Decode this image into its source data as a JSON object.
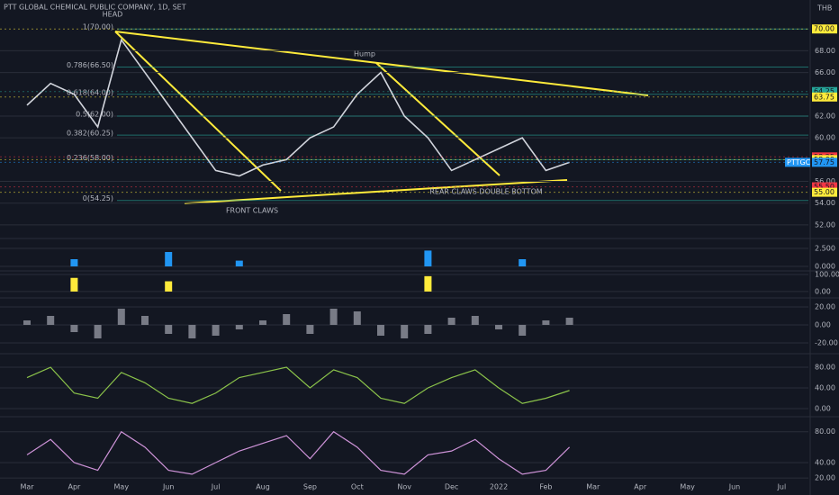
{
  "header": {
    "title": "PTT GLOBAL CHEMICAL PUBLIC COMPANY, 1D, SET",
    "currency": "THB",
    "ticker": "PTTGC"
  },
  "annotations": [
    "HEAD",
    "Hump",
    "FRONT CLAWS",
    "REAR CLAWS DOUBLE BOTTOM"
  ],
  "chart_data": [
    {
      "type": "line",
      "color": "#d1d4dc",
      "categories": [
        "Mar",
        null,
        "Apr",
        null,
        "May",
        null,
        "Jun",
        null,
        "Jul",
        null,
        "Aug",
        null,
        "Sep",
        null,
        "Oct",
        null,
        "Nov",
        null,
        "Dec",
        null,
        "2022",
        null,
        "Feb",
        null,
        "Mar",
        null,
        "Apr",
        null,
        "May",
        null,
        "Jun",
        null,
        "Jul",
        null
      ],
      "values": [
        63,
        65,
        64,
        61,
        69,
        66,
        63,
        60,
        57,
        56.5,
        57.5,
        58,
        60,
        61,
        64,
        66,
        62,
        60,
        57,
        58,
        59,
        60,
        57,
        57.75,
        null,
        null,
        null,
        null,
        null,
        null,
        null,
        null,
        null,
        null
      ],
      "ylim": [
        51,
        72
      ],
      "yticks": [
        {
          "value": 52,
          "label": "52.00"
        },
        {
          "value": 54,
          "label": "54.00"
        },
        {
          "value": 56,
          "label": "56.00"
        },
        {
          "value": 60,
          "label": "60.00"
        },
        {
          "value": 62,
          "label": "62.00"
        },
        {
          "value": 66,
          "label": "66.00"
        },
        {
          "value": 68,
          "label": "68.00"
        }
      ],
      "fib_levels": [
        {
          "value": 70,
          "label": "1(70.00)"
        },
        {
          "value": 66.5,
          "label": "0.786(66.50)"
        },
        {
          "value": 64,
          "label": "0.618(64.00)"
        },
        {
          "value": 62,
          "label": "0.5(62.00)"
        },
        {
          "value": 60.25,
          "label": "0.382(60.25)"
        },
        {
          "value": 58,
          "label": "0.236(58.00)"
        },
        {
          "value": 54.25,
          "label": "0(54.25)"
        }
      ],
      "price_labels": [
        {
          "value": 70,
          "label": "70.00",
          "color": "#ffeb3b"
        },
        {
          "value": 64.25,
          "label": "64.25",
          "color": "#26a69a"
        },
        {
          "value": 63.75,
          "label": "63.75",
          "color": "#ffeb3b"
        },
        {
          "value": 58.25,
          "label": "58.25",
          "color": "#f23645"
        },
        {
          "value": 58,
          "label": "58.00",
          "color": "#ffeb3b"
        },
        {
          "value": 57.75,
          "label": "57.75",
          "color": "#2196f3"
        },
        {
          "value": 55.5,
          "label": "55.50",
          "color": "#f23645"
        },
        {
          "value": 55,
          "label": "55.00",
          "color": "#ffeb3b"
        }
      ]
    },
    {
      "type": "bar",
      "color": "#2196f3",
      "ylim": [
        -0.75,
        3.5
      ],
      "yticks": [
        {
          "value": 2.5,
          "label": "2.500"
        },
        {
          "value": 0,
          "label": "0.000"
        }
      ],
      "values": [
        0,
        0,
        1,
        0,
        0,
        0,
        2,
        0,
        0,
        0.8,
        0,
        0,
        0,
        0,
        0,
        0,
        0,
        2.2,
        0,
        0,
        0,
        1,
        0,
        0,
        null,
        null,
        null,
        null,
        null,
        null,
        null,
        null,
        null,
        null
      ]
    },
    {
      "type": "bar",
      "color": "#ffeb3b",
      "ylim": [
        -32,
        105
      ],
      "yticks": [
        {
          "value": 100,
          "label": "100.00"
        },
        {
          "value": 0,
          "label": "0.00"
        }
      ],
      "values": [
        0,
        0,
        80,
        0,
        0,
        0,
        60,
        0,
        0,
        0,
        0,
        0,
        0,
        0,
        0,
        0,
        0,
        90,
        0,
        0,
        0,
        0,
        0,
        0,
        null,
        null,
        null,
        null,
        null,
        null,
        null,
        null,
        null,
        null
      ]
    },
    {
      "type": "bar",
      "color": "#787b86",
      "ylim": [
        -31,
        27
      ],
      "yticks": [
        {
          "value": 20,
          "label": "20.00"
        },
        {
          "value": 0,
          "label": "0.00"
        },
        {
          "value": -20,
          "label": "-20.00"
        }
      ],
      "values": [
        5,
        10,
        -8,
        -15,
        18,
        10,
        -10,
        -15,
        -12,
        -5,
        5,
        12,
        -10,
        18,
        15,
        -12,
        -15,
        -10,
        8,
        10,
        -5,
        -12,
        5,
        8,
        null,
        null,
        null,
        null,
        null,
        null,
        null,
        null,
        null,
        null
      ]
    },
    {
      "type": "line",
      "color": "#8bc34a",
      "ylim": [
        -14,
        101
      ],
      "yticks": [
        {
          "value": 80,
          "label": "80.00"
        },
        {
          "value": 40,
          "label": "40.00"
        },
        {
          "value": 0,
          "label": "0.00"
        }
      ],
      "values": [
        60,
        80,
        30,
        20,
        70,
        50,
        20,
        10,
        30,
        60,
        70,
        80,
        40,
        75,
        60,
        20,
        10,
        40,
        60,
        75,
        40,
        10,
        20,
        35,
        null,
        null,
        null,
        null,
        null,
        null,
        null,
        null,
        null,
        null
      ]
    },
    {
      "type": "line",
      "color": "#ce93d8",
      "ylim": [
        19,
        96
      ],
      "yticks": [
        {
          "value": 80,
          "label": "80.00"
        },
        {
          "value": 40,
          "label": "40.00"
        },
        {
          "value": 20,
          "label": "20.00"
        }
      ],
      "values": [
        50,
        70,
        40,
        30,
        80,
        60,
        30,
        25,
        40,
        55,
        65,
        75,
        45,
        80,
        60,
        30,
        25,
        50,
        55,
        70,
        45,
        25,
        30,
        60,
        null,
        null,
        null,
        null,
        null,
        null,
        null,
        null,
        null,
        null
      ]
    }
  ]
}
